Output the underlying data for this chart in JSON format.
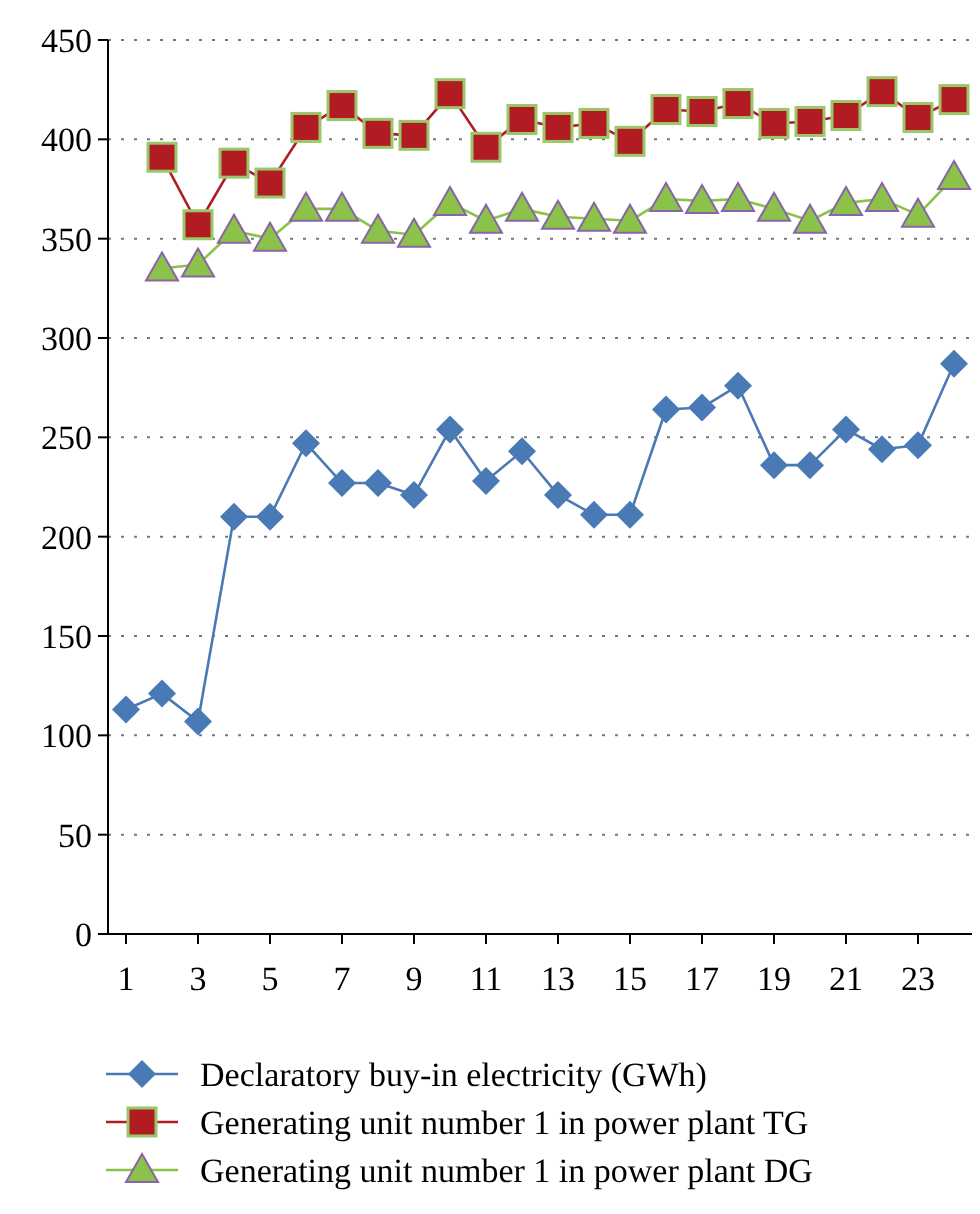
{
  "chart_data": {
    "type": "line",
    "x": [
      1,
      2,
      3,
      4,
      5,
      6,
      7,
      8,
      9,
      10,
      11,
      12,
      13,
      14,
      15,
      16,
      17,
      18,
      19,
      20,
      21,
      22,
      23,
      24
    ],
    "series": [
      {
        "name": "Declaratory buy-in electricity (GWh)",
        "color": "#4a7ab5",
        "marker": "diamond",
        "values": [
          113,
          121,
          107,
          210,
          210,
          247,
          227,
          227,
          221,
          254,
          228,
          243,
          221,
          211,
          211,
          264,
          265,
          276,
          236,
          236,
          254,
          244,
          246,
          287
        ]
      },
      {
        "name": "Generating unit number 1 in power plant TG",
        "color": "#b01c21",
        "marker": "square",
        "values": [
          null,
          391,
          357,
          388,
          378,
          406,
          417,
          403,
          402,
          423,
          396,
          410,
          406,
          408,
          399,
          415,
          414,
          418,
          408,
          409,
          412,
          424,
          411,
          420
        ]
      },
      {
        "name": "Generating unit number 1 in power plant DG",
        "color": "#8bc34a",
        "marker": "triangle",
        "values": [
          null,
          335,
          337,
          354,
          350,
          365,
          365,
          354,
          352,
          368,
          359,
          365,
          361,
          360,
          359,
          370,
          369,
          370,
          365,
          359,
          368,
          370,
          362,
          381
        ]
      }
    ],
    "xlim": [
      0.5,
      24.5
    ],
    "xticks": [
      1,
      3,
      5,
      7,
      9,
      11,
      13,
      15,
      17,
      19,
      21,
      23
    ],
    "ylim": [
      0,
      450
    ],
    "yticks": [
      0,
      50,
      100,
      150,
      200,
      250,
      300,
      350,
      400,
      450
    ],
    "grid": "y",
    "legend": "bottom",
    "line_style": "solid"
  }
}
